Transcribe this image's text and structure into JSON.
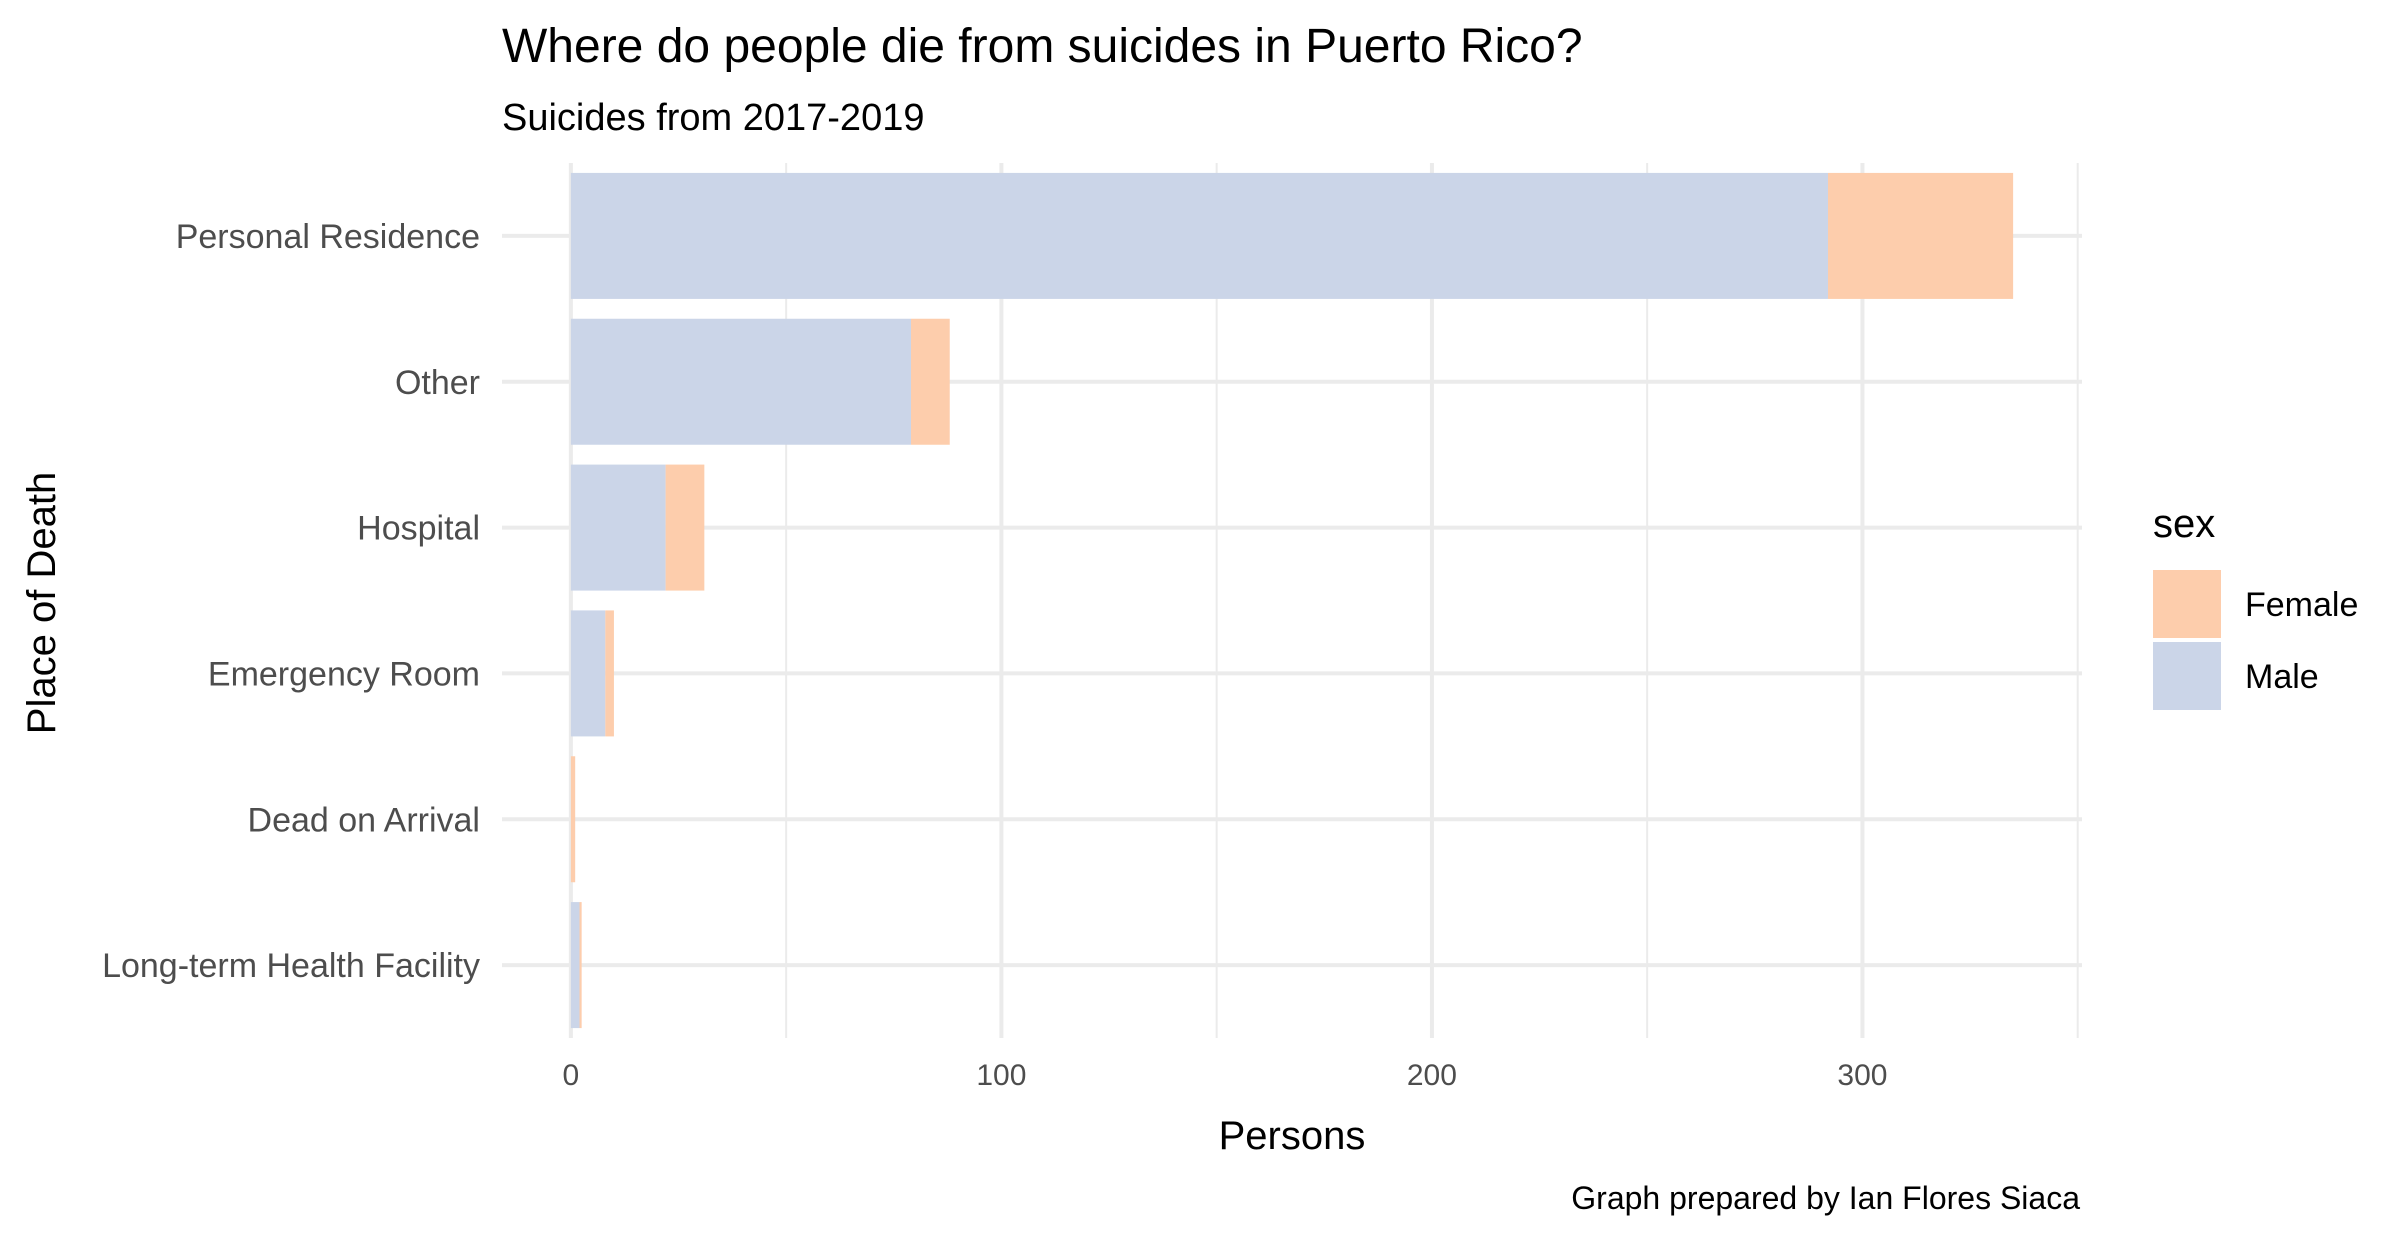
{
  "chart_data": {
    "type": "bar",
    "orientation": "horizontal",
    "stacked": true,
    "title": "Where do people die from suicides in Puerto Rico?",
    "subtitle": "Suicides from 2017-2019",
    "xlabel": "Persons",
    "ylabel": "Place of Death",
    "caption": "Graph prepared by Ian Flores Siaca",
    "categories": [
      "Personal Residence",
      "Other",
      "Hospital",
      "Emergency Room",
      "Dead on Arrival",
      "Long-term Health Facility"
    ],
    "series": [
      {
        "name": "Male",
        "color": "#cbd5e8",
        "values": [
          292,
          79,
          22,
          8,
          0,
          2
        ]
      },
      {
        "name": "Female",
        "color": "#fdcdac",
        "values": [
          43,
          9,
          9,
          2,
          1,
          0.5
        ]
      }
    ],
    "xlim": [
      -16,
      351
    ],
    "x_ticks": [
      0,
      100,
      200,
      300
    ],
    "x_tick_labels": [
      "0",
      "100",
      "200",
      "300"
    ],
    "grid": true,
    "legend": {
      "title": "sex",
      "placement": "right",
      "entries": [
        {
          "label": "Female",
          "color": "#fdcdac"
        },
        {
          "label": "Male",
          "color": "#cbd5e8"
        }
      ]
    }
  }
}
